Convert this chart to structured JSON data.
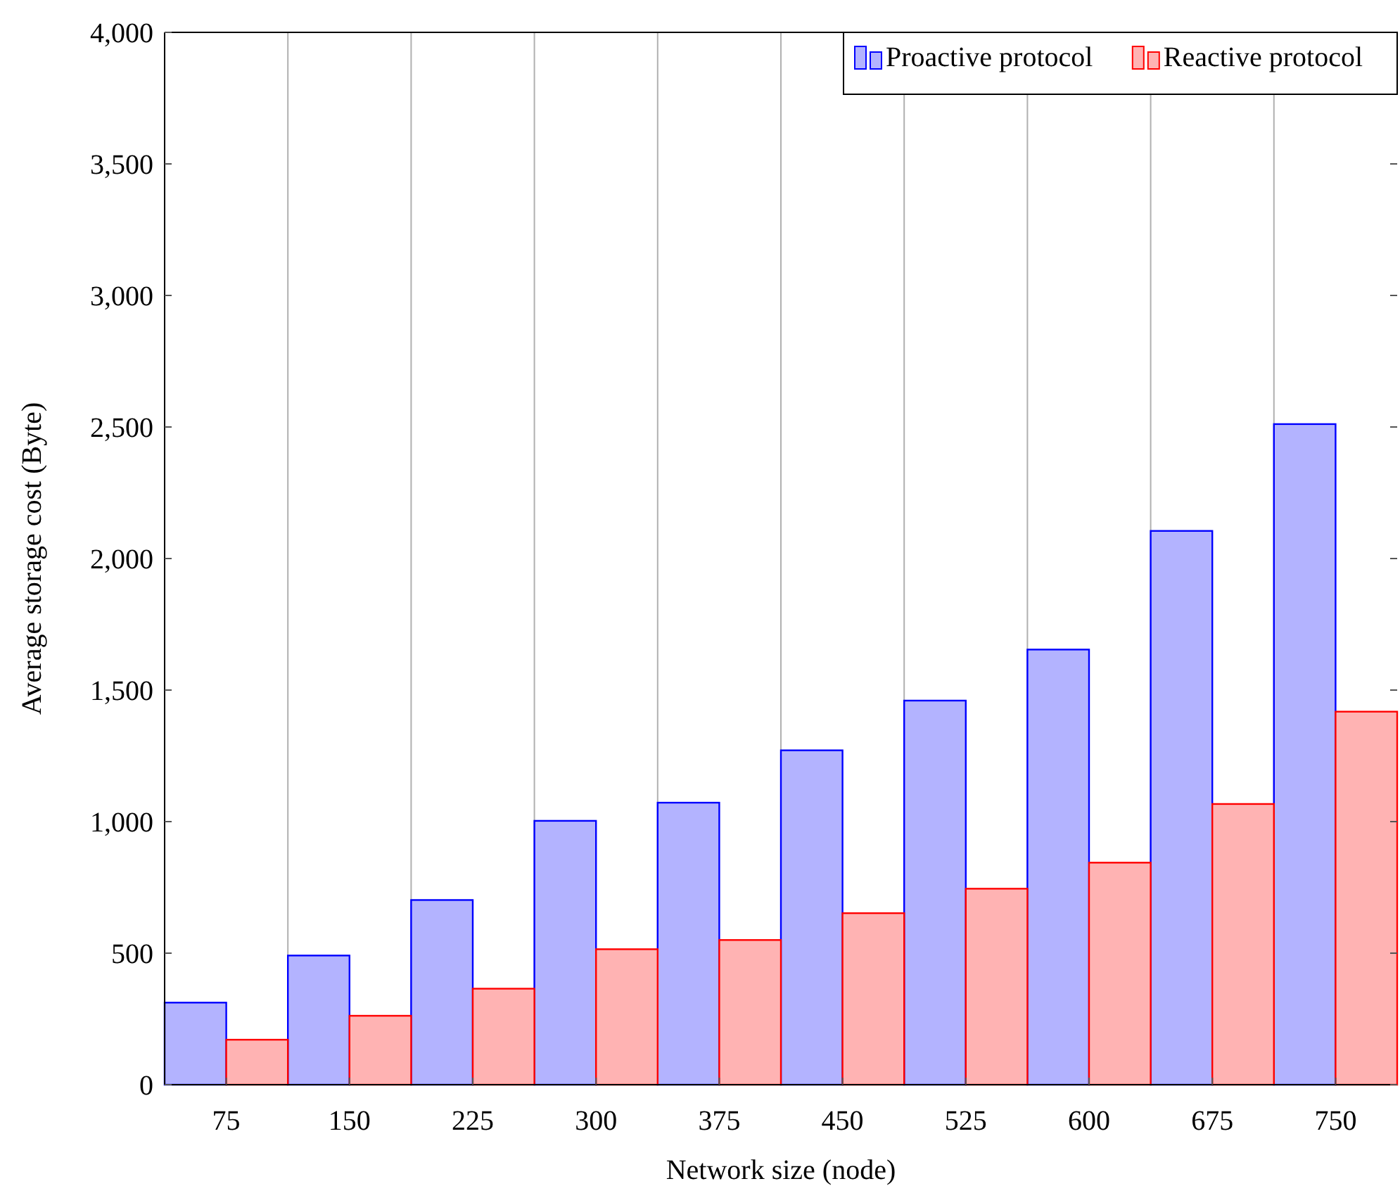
{
  "chart_data": {
    "type": "bar",
    "xlabel": "Network size (node)",
    "ylabel": "Average storage cost (Byte)",
    "categories": [
      "75",
      "150",
      "225",
      "300",
      "375",
      "450",
      "525",
      "600",
      "675",
      "750"
    ],
    "series": [
      {
        "name": "Proactive protocol",
        "color": "#0000ff",
        "values": [
          312,
          491,
          702,
          1003,
          1072,
          1271,
          1460,
          1654,
          2105,
          2511
        ]
      },
      {
        "name": "Reactive protocol",
        "color": "#ff0000",
        "values": [
          171,
          262,
          365,
          515,
          550,
          652,
          745,
          844,
          1067,
          1418
        ]
      }
    ],
    "ylim": [
      0,
      4000
    ],
    "yticks": [
      0,
      500,
      {
        "value": 1000,
        "label": "1,000"
      },
      {
        "value": 1500,
        "label": "1,500"
      },
      {
        "value": 2000,
        "label": "2,000"
      },
      {
        "value": 2500,
        "label": "2,500"
      },
      {
        "value": 3000,
        "label": "3,000"
      },
      {
        "value": 3500,
        "label": "3,500"
      },
      {
        "value": 4000,
        "label": "4,000"
      }
    ],
    "grid": "x",
    "legend": "top right"
  }
}
